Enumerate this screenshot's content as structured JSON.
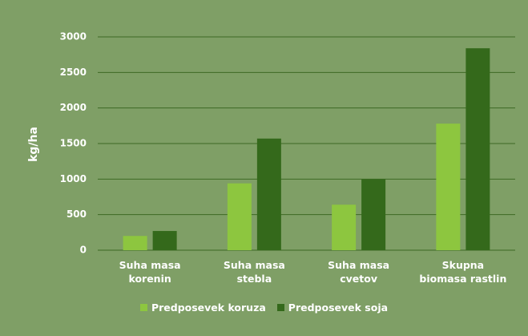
{
  "chart_data": {
    "type": "bar",
    "y_label": "kg/ha",
    "categories": [
      "Suha masa korenin",
      "Suha masa stebla",
      "Suha masa cvetov",
      "Skupna biomasa rastlin"
    ],
    "series": [
      {
        "name": "Predposevek koruza",
        "color": "#8dc63f",
        "values": [
          200,
          940,
          640,
          1780
        ]
      },
      {
        "name": "Predposevek soja",
        "color": "#34691b",
        "values": [
          270,
          1570,
          1000,
          2840
        ]
      }
    ],
    "ylim": [
      0,
      3000
    ],
    "yticks": [
      0,
      500,
      1000,
      1500,
      2000,
      2500,
      3000
    ],
    "grid": true,
    "legend": "bottom"
  }
}
